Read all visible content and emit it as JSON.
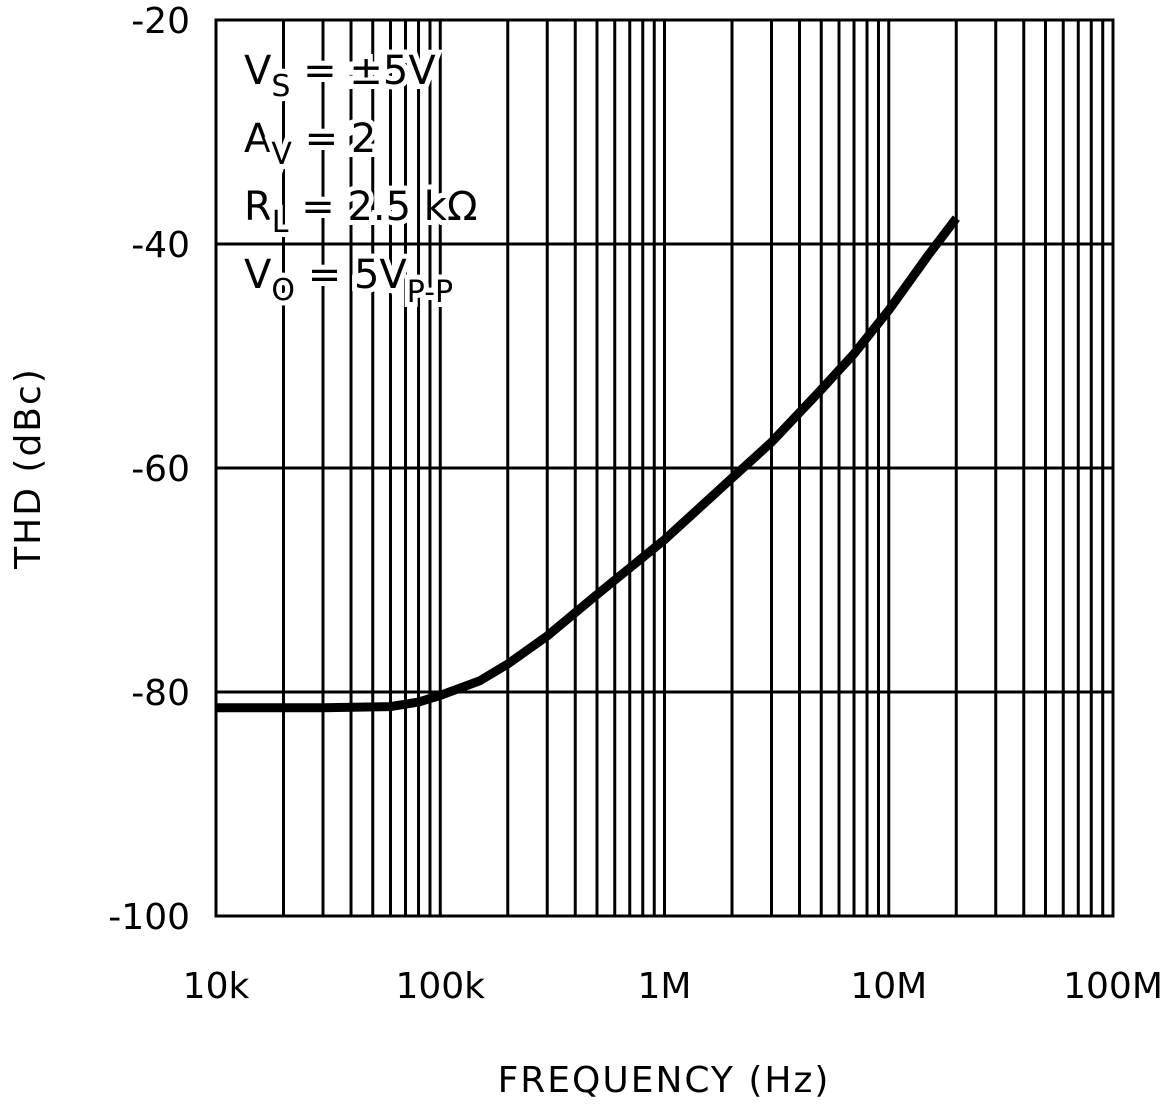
{
  "chart_data": {
    "type": "line",
    "xlabel": "FREQUENCY (Hz)",
    "ylabel": "THD (dBc)",
    "xscale": "log",
    "xlim": [
      10000,
      100000000
    ],
    "ylim": [
      -100,
      -20
    ],
    "grid": true,
    "x_ticks": [
      {
        "value": 10000,
        "label": "10k"
      },
      {
        "value": 100000,
        "label": "100k"
      },
      {
        "value": 1000000,
        "label": "1M"
      },
      {
        "value": 10000000,
        "label": "10M"
      },
      {
        "value": 100000000,
        "label": "100M"
      }
    ],
    "y_ticks": [
      {
        "value": -20,
        "label": "-20"
      },
      {
        "value": -40,
        "label": "-40"
      },
      {
        "value": -60,
        "label": "-60"
      },
      {
        "value": -80,
        "label": "-80"
      },
      {
        "value": -100,
        "label": "-100"
      }
    ],
    "color": "#000000",
    "series": [
      {
        "x": [
          10000,
          30000,
          60000,
          80000,
          100000,
          150000,
          200000,
          300000,
          500000,
          1000000,
          2000000,
          3000000,
          5000000,
          7000000,
          10000000,
          15000000,
          20000000
        ],
        "y": [
          -81.4,
          -81.4,
          -81.3,
          -80.9,
          -80.3,
          -79.0,
          -77.5,
          -75.0,
          -71.3,
          -66.4,
          -60.9,
          -57.7,
          -53.0,
          -49.8,
          -45.9,
          -41.0,
          -37.7
        ]
      }
    ],
    "annotations": [
      {
        "main": "V",
        "sub": "S",
        "rest": " = ±5V"
      },
      {
        "main": "A",
        "sub": "V",
        "rest": " = 2"
      },
      {
        "main": "R",
        "sub": "L",
        "rest": " = 2.5 kΩ"
      },
      {
        "main": "V",
        "sub": "O",
        "rest": " = 5V",
        "sub2": "P-P"
      }
    ]
  }
}
